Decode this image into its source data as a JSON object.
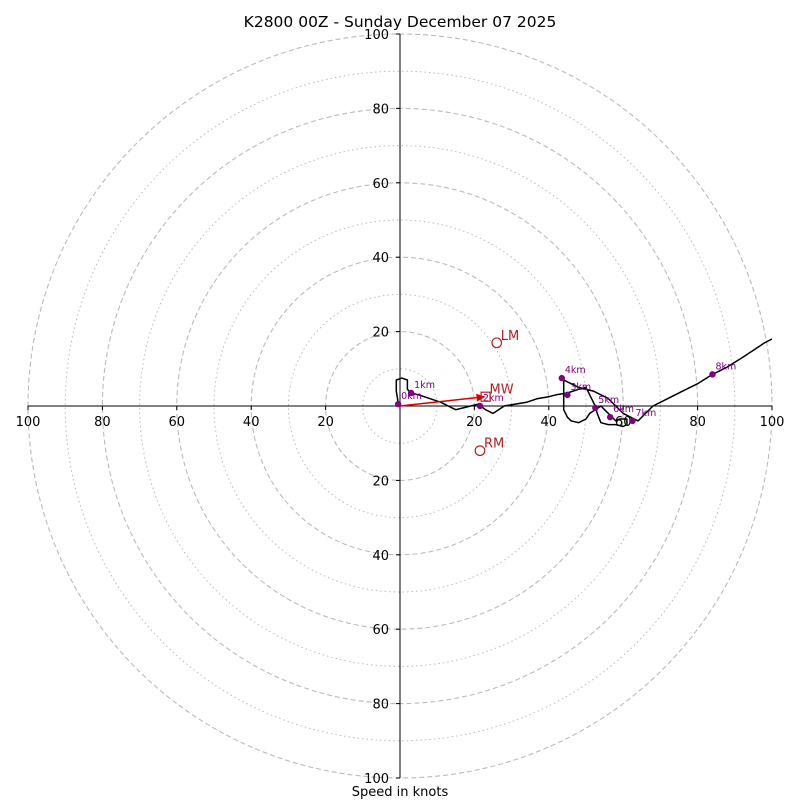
{
  "chart_data": {
    "type": "hodograph",
    "title": "K2800 00Z - Sunday December 07 2025",
    "xlabel": "Speed in knots",
    "range": [
      -100,
      100
    ],
    "major_rings": [
      20,
      40,
      60,
      80,
      100
    ],
    "minor_rings": [
      10,
      30,
      50,
      70,
      90
    ],
    "x_ticks": [
      "100",
      "80",
      "60",
      "40",
      "20",
      "20",
      "40",
      "60",
      "80",
      "100"
    ],
    "x_tick_values": [
      -100,
      -80,
      -60,
      -40,
      -20,
      20,
      40,
      60,
      80,
      100
    ],
    "y_ticks": [
      "100",
      "80",
      "60",
      "40",
      "20",
      "20",
      "40",
      "60",
      "80",
      "100"
    ],
    "y_tick_values": [
      100,
      80,
      60,
      40,
      20,
      -20,
      -40,
      -60,
      -80,
      -100
    ],
    "colors": {
      "trace": "#000000",
      "markers": "#800080",
      "motion": "#b22222",
      "mean_wind_arrow": "#dd0000",
      "grid": "#bbbbbb"
    },
    "hodograph_trace": [
      [
        -0.5,
        1
      ],
      [
        -1,
        4
      ],
      [
        -1,
        7
      ],
      [
        0.5,
        7.5
      ],
      [
        2,
        7
      ],
      [
        2,
        4.5
      ],
      [
        3,
        3.5
      ],
      [
        5,
        3
      ],
      [
        8,
        2
      ],
      [
        11,
        1
      ],
      [
        14,
        -0.5
      ],
      [
        15,
        -1
      ],
      [
        17,
        -0.5
      ],
      [
        19,
        0
      ],
      [
        21,
        0.5
      ],
      [
        23,
        -1
      ],
      [
        25,
        -2
      ],
      [
        26.5,
        -1
      ],
      [
        28,
        0
      ],
      [
        31,
        0.5
      ],
      [
        34,
        1
      ],
      [
        37,
        2
      ],
      [
        40,
        2.5
      ],
      [
        42,
        3
      ],
      [
        45,
        3.5
      ],
      [
        48,
        4.5
      ],
      [
        50,
        5
      ],
      [
        51,
        3
      ],
      [
        52,
        1
      ],
      [
        52.5,
        0
      ],
      [
        53,
        -2
      ],
      [
        54,
        -4.5
      ],
      [
        56,
        -5
      ],
      [
        58,
        -5
      ],
      [
        60,
        -5.5
      ],
      [
        61,
        -5
      ],
      [
        61,
        -3.5
      ],
      [
        59,
        -3.5
      ],
      [
        58,
        -4
      ],
      [
        57,
        -3
      ],
      [
        55,
        -1
      ],
      [
        54,
        0
      ],
      [
        52.5,
        -1
      ],
      [
        51,
        -2
      ],
      [
        50,
        -3.5
      ],
      [
        48,
        -4.5
      ],
      [
        46,
        -4
      ],
      [
        45,
        -3
      ],
      [
        44,
        -1
      ],
      [
        44,
        1
      ],
      [
        44,
        3
      ],
      [
        44,
        5
      ],
      [
        44,
        7
      ],
      [
        46,
        6
      ],
      [
        48,
        5
      ],
      [
        52,
        4
      ],
      [
        56,
        2
      ],
      [
        60,
        -2
      ],
      [
        62,
        -3
      ],
      [
        64,
        -4
      ],
      [
        66,
        -2
      ],
      [
        68,
        0
      ],
      [
        72,
        2
      ],
      [
        76,
        4
      ],
      [
        80,
        6
      ],
      [
        84,
        8.5
      ],
      [
        88,
        10.5
      ],
      [
        92,
        13
      ],
      [
        95,
        15
      ],
      [
        98,
        17
      ],
      [
        100,
        18
      ]
    ],
    "height_markers": [
      {
        "label": "0km",
        "u": -0.5,
        "v": 0.5
      },
      {
        "label": "1km",
        "u": 3,
        "v": 3.5
      },
      {
        "label": "2km",
        "u": 21.5,
        "v": 0
      },
      {
        "label": "3km",
        "u": 45,
        "v": 3
      },
      {
        "label": "4km",
        "u": 43.5,
        "v": 7.5
      },
      {
        "label": "5km",
        "u": 52.5,
        "v": -0.5
      },
      {
        "label": "6km",
        "u": 56.5,
        "v": -3
      },
      {
        "label": "7km",
        "u": 62.5,
        "v": -4
      },
      {
        "label": "8km",
        "u": 84,
        "v": 8.5
      }
    ],
    "storm_motion": [
      {
        "label": "LM",
        "u": 26,
        "v": 17,
        "marker": "circle"
      },
      {
        "label": "MW",
        "u": 23,
        "v": 2.5,
        "marker": "square"
      },
      {
        "label": "RM",
        "u": 21.5,
        "v": -12,
        "marker": "circle"
      }
    ],
    "mean_wind_vector": {
      "from": [
        0,
        0
      ],
      "to": [
        23,
        2.5
      ]
    }
  }
}
